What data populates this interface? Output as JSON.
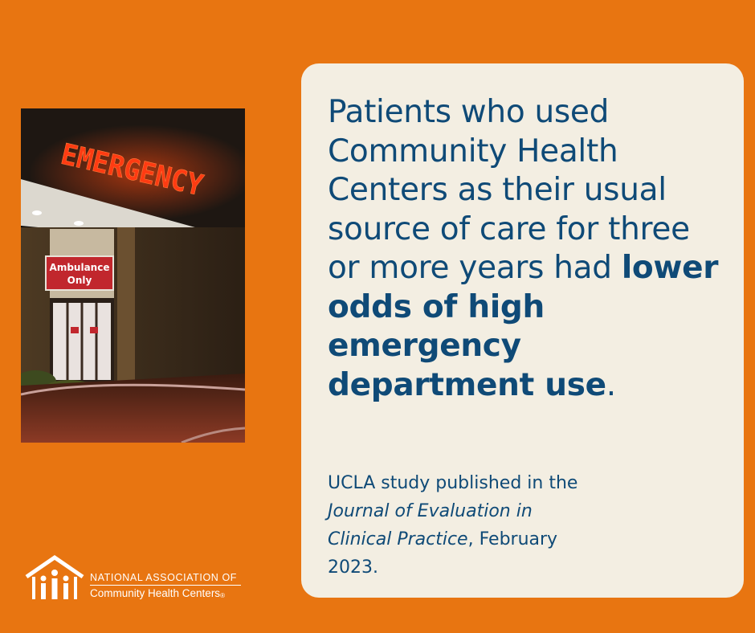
{
  "photo": {
    "sign_text": "EMERGENCY",
    "door_sign_line1": "Ambulance",
    "door_sign_line2": "Only"
  },
  "headline": {
    "plain_1": "Patients who used Community Health Centers as their usual source of care for three or more years had ",
    "bold": "lower odds of high emergency department use",
    "plain_2": "."
  },
  "source": {
    "text_1": "UCLA study published in the ",
    "journal": "Journal of Evaluation in Clinical Practice",
    "text_2": ", February 2023."
  },
  "logo": {
    "line1": "NATIONAL ASSOCIATION OF",
    "line2": "Community Health Centers",
    "registered": "®"
  },
  "colors": {
    "background": "#e87511",
    "card": "#f3eee2",
    "text": "#0f4a77"
  }
}
